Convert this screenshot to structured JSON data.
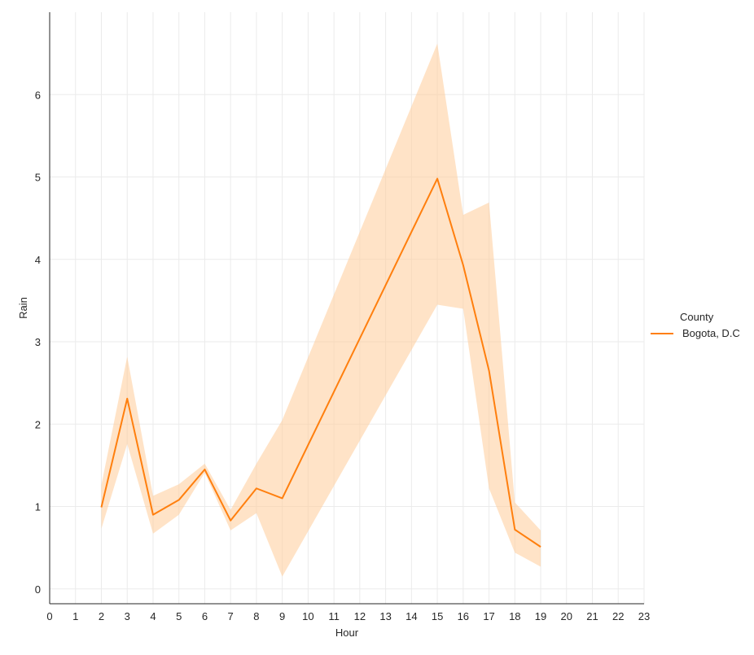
{
  "chart_data": {
    "type": "line",
    "xlabel": "Hour",
    "ylabel": "Rain",
    "xlim": [
      0,
      23
    ],
    "ylim": [
      -0.18,
      7.0
    ],
    "x_ticks": [
      0,
      1,
      2,
      3,
      4,
      5,
      6,
      7,
      8,
      9,
      10,
      11,
      12,
      13,
      14,
      15,
      16,
      17,
      18,
      19,
      20,
      21,
      22,
      23
    ],
    "y_ticks": [
      0,
      1,
      2,
      3,
      4,
      5,
      6
    ],
    "grid": true,
    "legend": {
      "title": "County",
      "position": "right"
    },
    "series": [
      {
        "name": "Bogota, D.C",
        "color": "#ff7f0e",
        "band_color": "#ffcc99",
        "x": [
          2,
          3,
          4,
          5,
          6,
          7,
          8,
          9,
          15,
          16,
          17,
          18,
          19
        ],
        "y": [
          0.99,
          2.31,
          0.9,
          1.08,
          1.45,
          0.83,
          1.22,
          1.1,
          4.98,
          3.93,
          2.65,
          0.72,
          0.51
        ],
        "ci_low": [
          0.73,
          1.76,
          0.67,
          0.9,
          1.41,
          0.71,
          0.92,
          0.15,
          3.45,
          3.4,
          1.22,
          0.44,
          0.27
        ],
        "ci_high": [
          1.26,
          2.82,
          1.13,
          1.27,
          1.52,
          0.96,
          1.52,
          2.05,
          6.62,
          4.54,
          4.69,
          1.05,
          0.71
        ]
      }
    ]
  }
}
